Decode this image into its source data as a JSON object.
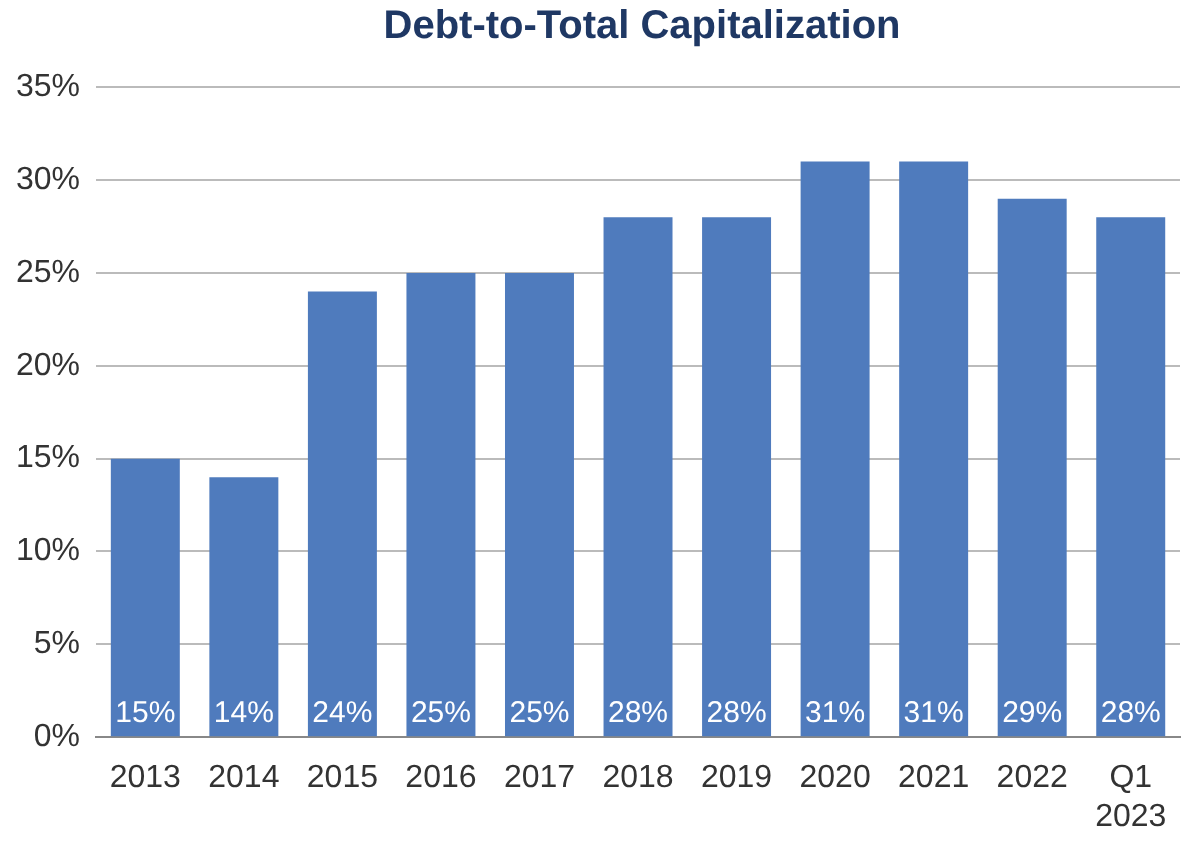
{
  "chart_data": {
    "type": "bar",
    "title": "Debt-to-Total Capitalization",
    "categories": [
      "2013",
      "2014",
      "2015",
      "2016",
      "2017",
      "2018",
      "2019",
      "2020",
      "2021",
      "2022",
      "Q1 2023"
    ],
    "values": [
      15,
      14,
      24,
      25,
      25,
      28,
      28,
      31,
      31,
      29,
      28
    ],
    "color": "#4f7bbd",
    "ylim": [
      0,
      35
    ],
    "yticks": [
      {
        "value": 0,
        "label": "0%"
      },
      {
        "value": 5,
        "label": "5%"
      },
      {
        "value": 10,
        "label": "10%"
      },
      {
        "value": 15,
        "label": "15%"
      },
      {
        "value": 20,
        "label": "20%"
      },
      {
        "value": 25,
        "label": "25%"
      },
      {
        "value": 30,
        "label": "30%"
      },
      {
        "value": 35,
        "label": "35%"
      }
    ],
    "grid": "y",
    "legend": false,
    "value_labels": [
      "15%",
      "14%",
      "24%",
      "25%",
      "25%",
      "28%",
      "28%",
      "31%",
      "31%",
      "29%",
      "28%"
    ]
  }
}
